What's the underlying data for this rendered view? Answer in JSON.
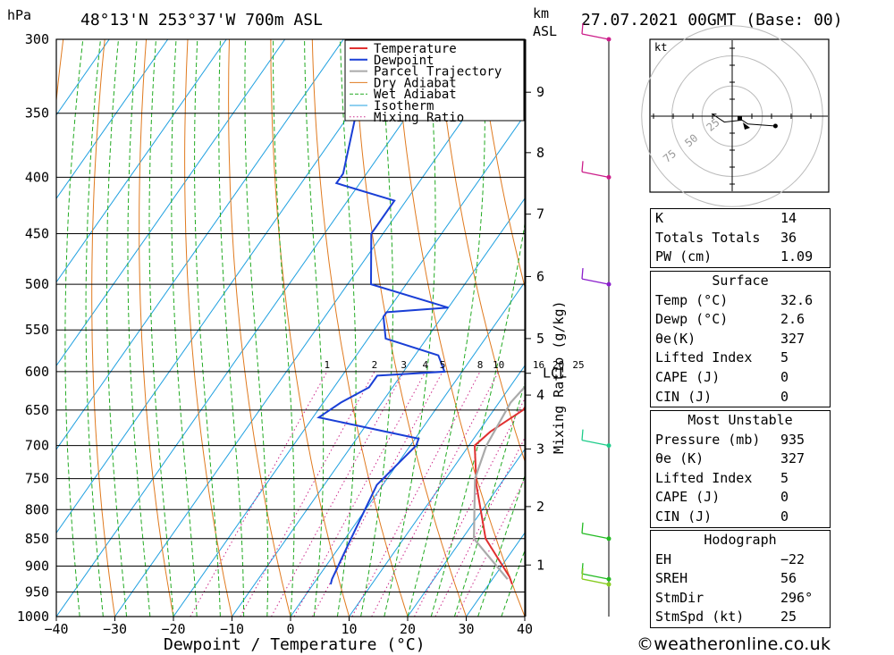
{
  "header": {
    "unit_left": "hPa",
    "location": "48°13'N  253°37'W  700m  ASL",
    "km_label": "km",
    "asl_label": "ASL",
    "datetime": "27.07.2021  00GMT  (Base: 00)"
  },
  "chart_data": {
    "type": "line",
    "xlabel": "Dewpoint / Temperature (°C)",
    "ylabel": "hPa",
    "xlim": [
      -40,
      40
    ],
    "ylim": [
      1000,
      300
    ],
    "y_scale": "log",
    "skew": "skew-T",
    "x_ticks": [
      "−40",
      "−30",
      "−20",
      "−10",
      "0",
      "10",
      "20",
      "30",
      "40"
    ],
    "pressure_ticks": [
      300,
      350,
      400,
      450,
      500,
      550,
      600,
      650,
      700,
      750,
      800,
      850,
      900,
      950,
      1000
    ],
    "km_ticks": [
      {
        "label": "1",
        "p": 898
      },
      {
        "label": "2",
        "p": 795
      },
      {
        "label": "3",
        "p": 705
      },
      {
        "label": "4",
        "p": 630
      },
      {
        "label": "5",
        "p": 560
      },
      {
        "label": "6",
        "p": 492
      },
      {
        "label": "7",
        "p": 432
      },
      {
        "label": "8",
        "p": 380
      },
      {
        "label": "9",
        "p": 335
      }
    ],
    "lcl": {
      "label": "LCL",
      "p": 602
    },
    "mixing_ratio_label": "Mixing Ratio (g/kg)",
    "mixing_ratio_values": [
      "1",
      "2",
      "3",
      "4",
      "5",
      "8",
      "10",
      "16",
      "20",
      "25"
    ],
    "series": [
      {
        "name": "Temperature",
        "color": "#e03030",
        "points": [
          [
            34,
            935
          ],
          [
            32.6,
            920
          ],
          [
            24,
            850
          ],
          [
            16,
            760
          ],
          [
            11,
            700
          ],
          [
            12,
            680
          ],
          [
            15,
            650
          ],
          [
            15,
            620
          ],
          [
            14,
            600
          ],
          [
            15,
            575
          ],
          [
            14,
            550
          ],
          [
            10,
            500
          ],
          [
            6,
            450
          ],
          [
            3,
            420
          ],
          [
            2,
            400
          ],
          [
            -3,
            360
          ],
          [
            -9,
            320
          ],
          [
            -12,
            300
          ]
        ]
      },
      {
        "name": "Dewpoint",
        "color": "#1a3fd6",
        "points": [
          [
            3,
            935
          ],
          [
            2.6,
            925
          ],
          [
            1,
            850
          ],
          [
            -1,
            760
          ],
          [
            1,
            700
          ],
          [
            0.6,
            690
          ],
          [
            -19,
            660
          ],
          [
            -17,
            640
          ],
          [
            -14,
            620
          ],
          [
            -14,
            605
          ],
          [
            -3,
            600
          ],
          [
            -6,
            580
          ],
          [
            -17,
            560
          ],
          [
            -20,
            535
          ],
          [
            -20,
            530
          ],
          [
            -10,
            525
          ],
          [
            -26,
            500
          ],
          [
            -32,
            450
          ],
          [
            -32,
            420
          ],
          [
            -44,
            405
          ],
          [
            -44,
            397
          ],
          [
            -49,
            350
          ],
          [
            -55,
            300
          ]
        ]
      },
      {
        "name": "Parcel Trajectory",
        "color": "#aaaaaa",
        "points": [
          [
            32.6,
            925
          ],
          [
            22,
            850
          ],
          [
            15,
            750
          ],
          [
            13,
            700
          ],
          [
            12,
            640
          ],
          [
            13,
            602
          ],
          [
            9,
            550
          ],
          [
            5,
            500
          ],
          [
            -1,
            450
          ],
          [
            -7,
            400
          ],
          [
            -14,
            350
          ],
          [
            -23,
            300
          ]
        ]
      }
    ],
    "legend": [
      "Temperature",
      "Dewpoint",
      "Parcel Trajectory",
      "Dry Adiabat",
      "Wet Adiabat",
      "Isotherm",
      "Mixing Ratio"
    ],
    "legend_colors": [
      "#e03030",
      "#1a3fd6",
      "#aaaaaa",
      "#e07a1f",
      "#22aa22",
      "#1fa0e0",
      "#cc2a8a"
    ],
    "wind_barbs": [
      {
        "p": 300,
        "color": "#cc1e8a"
      },
      {
        "p": 400,
        "color": "#cc1e8a"
      },
      {
        "p": 500,
        "color": "#8a1ecc"
      },
      {
        "p": 700,
        "color": "#1ecc8a"
      },
      {
        "p": 850,
        "color": "#22bb22"
      },
      {
        "p": 925,
        "color": "#22bb22"
      },
      {
        "p": 935,
        "color": "#88cc22"
      }
    ],
    "hodograph": {
      "unit": "kt",
      "rings": [
        "25",
        "50",
        "75"
      ],
      "points": [
        [
          -8,
          1
        ],
        [
          -10,
          1
        ],
        [
          -4,
          -3
        ],
        [
          5,
          -2
        ],
        [
          8,
          -4
        ],
        [
          22,
          -5
        ]
      ]
    }
  },
  "indices": {
    "rows": [
      {
        "k": "K",
        "v": "14"
      },
      {
        "k": "Totals Totals",
        "v": "36"
      },
      {
        "k": "PW (cm)",
        "v": "1.09"
      }
    ]
  },
  "surface": {
    "title": "Surface",
    "rows": [
      {
        "k": "Temp (°C)",
        "v": "32.6"
      },
      {
        "k": "Dewp (°C)",
        "v": "2.6"
      },
      {
        "k": "θe(K)",
        "v": "327"
      },
      {
        "k": "Lifted Index",
        "v": "5"
      },
      {
        "k": "CAPE (J)",
        "v": "0"
      },
      {
        "k": "CIN (J)",
        "v": "0"
      }
    ]
  },
  "most_unstable": {
    "title": "Most Unstable",
    "rows": [
      {
        "k": "Pressure (mb)",
        "v": "935"
      },
      {
        "k": "θe (K)",
        "v": "327"
      },
      {
        "k": "Lifted Index",
        "v": "5"
      },
      {
        "k": "CAPE (J)",
        "v": "0"
      },
      {
        "k": "CIN (J)",
        "v": "0"
      }
    ]
  },
  "hodograph_table": {
    "title": "Hodograph",
    "rows": [
      {
        "k": "EH",
        "v": "−22"
      },
      {
        "k": "SREH",
        "v": "56"
      },
      {
        "k": "StmDir",
        "v": "296°"
      },
      {
        "k": "StmSpd (kt)",
        "v": "25"
      }
    ]
  },
  "footer": {
    "copyright": "©weatheronline.co.uk"
  }
}
